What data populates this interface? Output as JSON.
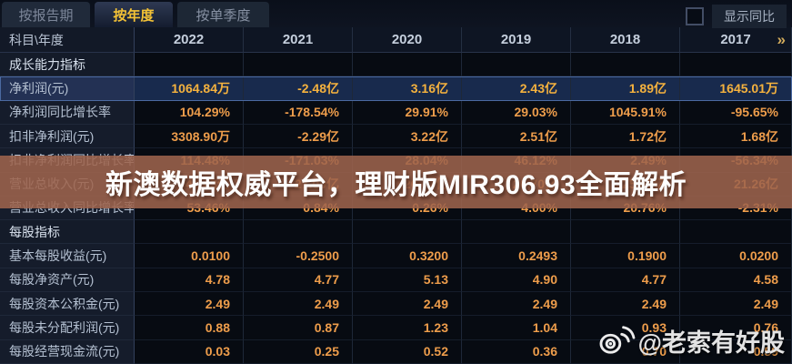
{
  "tabs": [
    {
      "label": "按报告期",
      "active": false
    },
    {
      "label": "按年度",
      "active": true
    },
    {
      "label": "按单季度",
      "active": false
    }
  ],
  "toolbar": {
    "show_yoy_label": "显示同比",
    "checkbox_checked": false
  },
  "table": {
    "header": {
      "corner": "科目\\年度",
      "years": [
        "2022",
        "2021",
        "2020",
        "2019",
        "2018",
        "2017"
      ],
      "more": "»"
    },
    "rows": [
      {
        "type": "section",
        "label": "成长能力指标",
        "values": [
          "",
          "",
          "",
          "",
          "",
          ""
        ]
      },
      {
        "type": "data",
        "label": "净利润(元)",
        "highlight": true,
        "values": [
          "1064.84万",
          "-2.48亿",
          "3.16亿",
          "2.43亿",
          "1.89亿",
          "1645.01万"
        ]
      },
      {
        "type": "data",
        "label": "净利润同比增长率",
        "values": [
          "104.29%",
          "-178.54%",
          "29.91%",
          "29.03%",
          "1045.91%",
          "-95.65%"
        ]
      },
      {
        "type": "data",
        "label": "扣非净利润(元)",
        "values": [
          "3308.90万",
          "-2.29亿",
          "3.22亿",
          "2.51亿",
          "1.72亿",
          "1.68亿"
        ]
      },
      {
        "type": "data",
        "label": "扣非净利润同比增长率",
        "values": [
          "114.48%",
          "-171.03%",
          "28.04%",
          "46.12%",
          "2.49%",
          "-56.34%"
        ]
      },
      {
        "type": "data",
        "label": "营业总收入(元)",
        "values": [
          "41.43亿",
          "27.00亿",
          "26.77亿",
          "26.70亿",
          "25.67亿",
          "21.26亿"
        ]
      },
      {
        "type": "data",
        "label": "营业总收入同比增长率",
        "values": [
          "53.46%",
          "0.84%",
          "0.26%",
          "4.00%",
          "20.76%",
          "-2.31%"
        ]
      },
      {
        "type": "section",
        "label": "每股指标",
        "values": [
          "",
          "",
          "",
          "",
          "",
          ""
        ]
      },
      {
        "type": "data",
        "label": "基本每股收益(元)",
        "values": [
          "0.0100",
          "-0.2500",
          "0.3200",
          "0.2493",
          "0.1900",
          "0.0200"
        ]
      },
      {
        "type": "data",
        "label": "每股净资产(元)",
        "values": [
          "4.78",
          "4.77",
          "5.13",
          "4.90",
          "4.77",
          "4.58"
        ]
      },
      {
        "type": "data",
        "label": "每股资本公积金(元)",
        "values": [
          "2.49",
          "2.49",
          "2.49",
          "2.49",
          "2.49",
          "2.49"
        ]
      },
      {
        "type": "data",
        "label": "每股未分配利润(元)",
        "values": [
          "0.88",
          "0.87",
          "1.23",
          "1.04",
          "0.93",
          "0.76"
        ]
      },
      {
        "type": "data",
        "label": "每股经营现金流(元)",
        "values": [
          "0.03",
          "0.25",
          "0.52",
          "0.36",
          "0.70",
          "0.59"
        ]
      }
    ]
  },
  "watermark": {
    "text": "新澳数据权威平台，理财版MIR306.93全面解析",
    "band_color": "#9f644d"
  },
  "credit": {
    "icon": "weibo-icon",
    "text": "@老索有好股"
  },
  "colors": {
    "accent_tab": "#f4c236",
    "value_orange": "#ee9d4b",
    "highlight_border": "#4b69a1",
    "highlight_bg": "#182a4d"
  }
}
